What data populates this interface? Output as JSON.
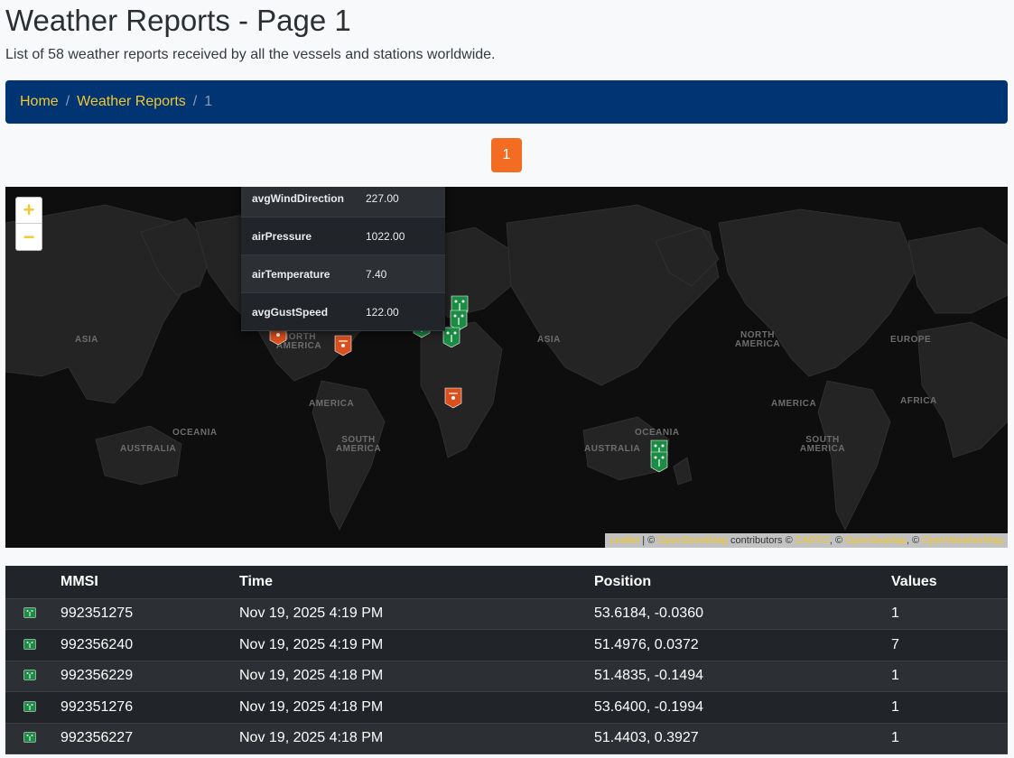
{
  "page": {
    "title": "Weather Reports - Page 1",
    "subtitle": "List of 58 weather reports received by all the vessels and stations worldwide."
  },
  "breadcrumb": {
    "home": "Home",
    "section": "Weather Reports",
    "current": "1",
    "separator": "/"
  },
  "pagination": {
    "current_page": "1"
  },
  "map": {
    "zoom_in": "+",
    "zoom_out": "−",
    "labels": [
      "ASIA",
      "NORTH AMERICA",
      "OCEANIA",
      "AUSTRALIA",
      "SOUTH AMERICA",
      "AMERICA",
      "ASIA",
      "NORTH AMERICA",
      "EUROPE",
      "AFRICA",
      "AMERICA",
      "OCEANIA",
      "AUSTRALIA",
      "SOUTH AMERICA"
    ],
    "popup": [
      {
        "key": "avgWindDirection",
        "value": "227.00"
      },
      {
        "key": "airPressure",
        "value": "1022.00"
      },
      {
        "key": "airTemperature",
        "value": "7.40"
      },
      {
        "key": "avgGustSpeed",
        "value": "122.00"
      }
    ],
    "attribution": {
      "leaflet": "Leaflet",
      "sep1": " | © ",
      "osm": "OpenStreetMap",
      "contributors": " contributors © ",
      "carto": "CARTO",
      "sep2": ", © ",
      "seamap": "OpenSeaMap",
      "sep3": ", © ",
      "weather": "OpenWeatherMap"
    },
    "colors": {
      "vessel": "#1a8c43",
      "station": "#d94f1e"
    }
  },
  "table": {
    "headers": {
      "icon": "",
      "mmsi": "MMSI",
      "time": "Time",
      "position": "Position",
      "values": "Values"
    },
    "rows": [
      {
        "mmsi": "992351275",
        "time": "Nov 19, 2025 4:19 PM",
        "position": "53.6184, -0.0360",
        "values": "1"
      },
      {
        "mmsi": "992356240",
        "time": "Nov 19, 2025 4:19 PM",
        "position": "51.4976, 0.0372",
        "values": "7"
      },
      {
        "mmsi": "992356229",
        "time": "Nov 19, 2025 4:18 PM",
        "position": "51.4835, -0.1494",
        "values": "1"
      },
      {
        "mmsi": "992351276",
        "time": "Nov 19, 2025 4:18 PM",
        "position": "53.6400, -0.1994",
        "values": "1"
      },
      {
        "mmsi": "992356227",
        "time": "Nov 19, 2025 4:18 PM",
        "position": "51.4403, 0.3927",
        "values": "1"
      }
    ]
  }
}
